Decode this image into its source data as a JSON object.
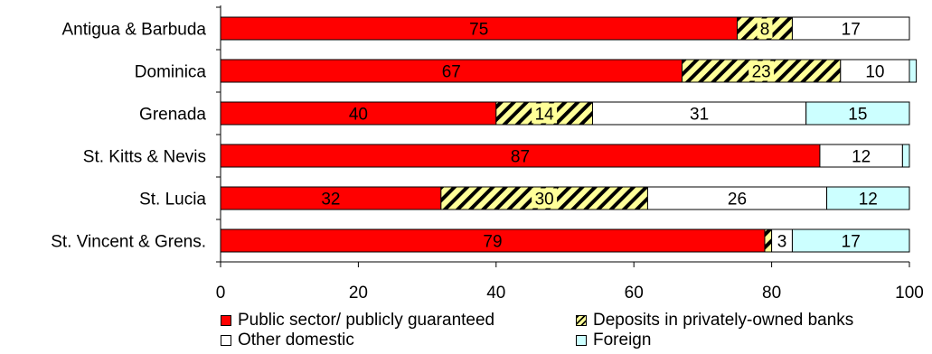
{
  "chart_data": {
    "type": "bar",
    "orientation": "horizontal",
    "stacked": true,
    "categories": [
      "Antigua & Barbuda",
      "Dominica",
      "Grenada",
      "St. Kitts & Nevis",
      "St. Lucia",
      "St. Vincent & Grens."
    ],
    "series": [
      {
        "name": "Public sector/ publicly guaranteed",
        "values": [
          75,
          67,
          40,
          87,
          32,
          79
        ],
        "color": "#ff0000",
        "pattern": "solid"
      },
      {
        "name": "Deposits in privately-owned banks",
        "values": [
          8,
          23,
          14,
          0,
          30,
          1
        ],
        "color": "#ffff99",
        "pattern": "hatched"
      },
      {
        "name": "Other domestic",
        "values": [
          17,
          10,
          31,
          12,
          26,
          3
        ],
        "color": "#ffffff",
        "pattern": "solid"
      },
      {
        "name": "Foreign",
        "values": [
          0,
          1,
          15,
          1,
          12,
          17
        ],
        "color": "#ccffff",
        "pattern": "solid"
      }
    ],
    "labels": [
      [
        "75",
        "8",
        "17",
        ""
      ],
      [
        "67",
        "23",
        "10",
        ""
      ],
      [
        "40",
        "14",
        "31",
        "15"
      ],
      [
        "87",
        "",
        "12",
        ""
      ],
      [
        "32",
        "30",
        "26",
        "12"
      ],
      [
        "79",
        "",
        "3",
        "17"
      ]
    ],
    "xlim": [
      0,
      100
    ],
    "xticks": [
      "0",
      "20",
      "40",
      "60",
      "80",
      "100"
    ],
    "grid": false,
    "legend_position": "bottom"
  }
}
